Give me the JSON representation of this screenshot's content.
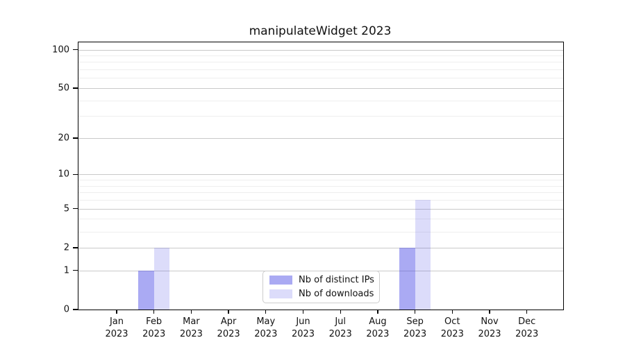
{
  "title": "manipulateWidget 2023",
  "colors": {
    "bar_distinct_ips": "#aaaaf3",
    "bar_downloads": "#dcdcf9",
    "bar_distinct_ips_rgba": "rgba(70,70,228,0.46)",
    "bar_downloads_rgba": "rgba(70,70,228,0.19)",
    "grid_major": "#c9c9c9",
    "grid_minor": "#eeeeee",
    "spine": "#000000",
    "text": "#111111"
  },
  "chart_data": {
    "type": "bar",
    "title": "manipulateWidget 2023",
    "categories": [
      "Jan",
      "Feb",
      "Mar",
      "Apr",
      "May",
      "Jun",
      "Jul",
      "Aug",
      "Sep",
      "Oct",
      "Nov",
      "Dec"
    ],
    "category_year": "2023",
    "series": [
      {
        "name": "Nb of distinct IPs",
        "values": [
          0,
          1,
          0,
          0,
          0,
          0,
          0,
          0,
          2,
          0,
          0,
          0
        ],
        "color": "rgba(70,70,228,0.46)"
      },
      {
        "name": "Nb of downloads",
        "values": [
          0,
          2,
          0,
          0,
          0,
          0,
          0,
          0,
          6,
          0,
          0,
          0
        ],
        "color": "rgba(70,70,228,0.19)"
      }
    ],
    "xlabel": "",
    "ylabel": "",
    "yscale": "log1p",
    "ylim": [
      0,
      114
    ],
    "yticks": [
      0,
      1,
      2,
      5,
      10,
      20,
      50,
      100
    ],
    "minor_gridlines": [
      3,
      4,
      6,
      7,
      8,
      9,
      30,
      40,
      60,
      70,
      80,
      90
    ],
    "grid": true,
    "legend_position": "lower center"
  }
}
